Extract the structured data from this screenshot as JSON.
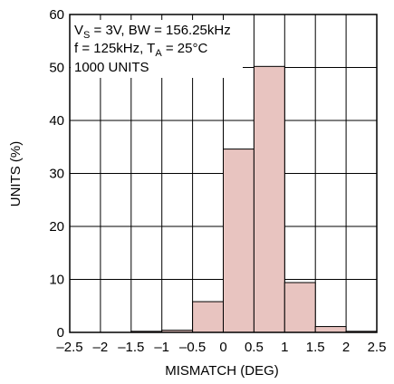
{
  "chart_data": {
    "type": "bar",
    "title": "",
    "xlabel": "MISMATCH (DEG)",
    "ylabel": "UNITS (%)",
    "xlim": [
      -2.5,
      2.5
    ],
    "ylim": [
      0,
      60
    ],
    "grid": true,
    "bar_color": "#e8c4c0",
    "xticks": [
      "–2.5",
      "–2",
      "–1.5",
      "–1",
      "–0.5",
      "0",
      "0.5",
      "1",
      "1.5",
      "2",
      "2.5"
    ],
    "yticks": [
      "0",
      "10",
      "20",
      "30",
      "40",
      "50",
      "60"
    ],
    "bins": [
      {
        "from": -2.5,
        "to": -2.0,
        "value": 0
      },
      {
        "from": -2.0,
        "to": -1.5,
        "value": 0
      },
      {
        "from": -1.5,
        "to": -1.0,
        "value": 0.2
      },
      {
        "from": -1.0,
        "to": -0.5,
        "value": 0.4
      },
      {
        "from": -0.5,
        "to": 0.0,
        "value": 5.8
      },
      {
        "from": 0.0,
        "to": 0.5,
        "value": 34.6
      },
      {
        "from": 0.5,
        "to": 1.0,
        "value": 50.2
      },
      {
        "from": 1.0,
        "to": 1.5,
        "value": 9.4
      },
      {
        "from": 1.5,
        "to": 2.0,
        "value": 1.1
      },
      {
        "from": 2.0,
        "to": 2.5,
        "value": 0.2
      }
    ],
    "annotation": {
      "line1_prefix": "V",
      "line1_sub": "S",
      "line1_rest": " = 3V, BW = 156.25kHz",
      "line2_prefix": "f = 125kHz, T",
      "line2_sub": "A",
      "line2_rest": " = 25°C",
      "line3": "1000 UNITS"
    }
  }
}
